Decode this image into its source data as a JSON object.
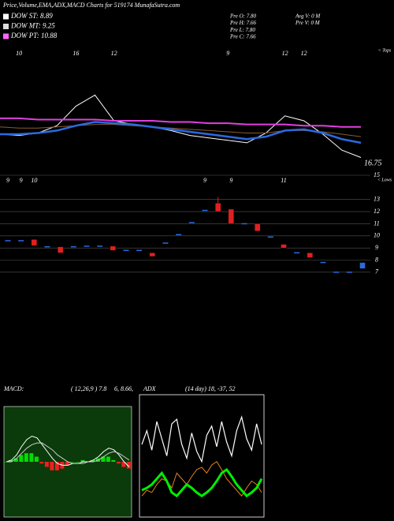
{
  "header": {
    "title": "Price,Volume,EMA,ADX,MACD Charts for 519174  MunafaSutra.com",
    "legend": [
      {
        "text": "DOW ST: 8.89",
        "color": "#ffffff"
      },
      {
        "text": "DOW MT: 9.25",
        "color": "#dddddd"
      },
      {
        "text": "DOW PT: 10.88",
        "color": "#ff66ff"
      }
    ],
    "quote": [
      "Pre  O: 7.80",
      "Pre  H: 7.66",
      "Pre  L: 7.80",
      "Pre  C: 7.66"
    ],
    "volume": [
      "Avg V: 0  M",
      "Pre  V: 0  M"
    ]
  },
  "chart_data": [
    {
      "type": "line",
      "annotations": [
        "< Tops",
        "16.75"
      ],
      "ylim": [
        16,
        26
      ],
      "categories": [
        null,
        "10",
        null,
        null,
        "16",
        null,
        "12",
        null,
        null,
        null,
        null,
        null,
        "9",
        null,
        null,
        "12",
        "12",
        null,
        null,
        null
      ],
      "series": [
        {
          "color": "#ffffff",
          "width": 1,
          "values": [
            18.9,
            18.8,
            19.0,
            19.6,
            21.2,
            22.1,
            20.0,
            19.7,
            19.5,
            19.2,
            18.8,
            18.6,
            18.4,
            18.2,
            19.0,
            20.4,
            20.0,
            18.9,
            17.6,
            17.0
          ]
        },
        {
          "color": "#8b5a2b",
          "width": 1,
          "values": [
            19.5,
            19.4,
            19.4,
            19.5,
            19.6,
            19.7,
            19.7,
            19.6,
            19.5,
            19.4,
            19.3,
            19.2,
            19.1,
            19.0,
            19.0,
            19.2,
            19.2,
            19.1,
            18.9,
            18.7
          ]
        },
        {
          "color": "#e040e0",
          "width": 2,
          "values": [
            20.2,
            20.2,
            20.1,
            20.1,
            20.1,
            20.1,
            20.0,
            20.0,
            20.0,
            19.9,
            19.9,
            19.8,
            19.8,
            19.7,
            19.7,
            19.7,
            19.6,
            19.6,
            19.5,
            19.5
          ]
        },
        {
          "color": "#2a6ae0",
          "width": 2.5,
          "values": [
            18.9,
            18.9,
            19.0,
            19.2,
            19.6,
            19.9,
            19.8,
            19.7,
            19.5,
            19.3,
            19.1,
            18.9,
            18.7,
            18.5,
            18.7,
            19.2,
            19.3,
            19.0,
            18.5,
            18.2
          ]
        }
      ]
    },
    {
      "type": "candlestick",
      "annotations": [
        "< Lows"
      ],
      "ylim": [
        6.6,
        15
      ],
      "yticks": [
        15,
        13,
        12,
        11,
        10,
        9,
        8,
        7
      ],
      "up_color": "#2a6ae0",
      "down_color": "#e02020",
      "categories": [
        "9",
        "9",
        "10",
        null,
        null,
        null,
        null,
        null,
        null,
        null,
        null,
        null,
        null,
        null,
        null,
        "9",
        null,
        "9",
        null,
        null,
        null,
        "11",
        null,
        null,
        null,
        null,
        null,
        null
      ],
      "open": [
        9.6,
        9.6,
        9.7,
        9.1,
        9.1,
        9.1,
        9.15,
        9.15,
        9.15,
        8.8,
        8.8,
        8.6,
        9.4,
        10.1,
        11.1,
        12.1,
        12.7,
        12.2,
        11.0,
        11.0,
        9.9,
        9.3,
        8.6,
        8.6,
        7.8,
        7.0,
        7.0,
        7.3
      ],
      "high": [
        9.6,
        9.6,
        9.7,
        9.1,
        9.1,
        9.1,
        9.15,
        9.15,
        9.15,
        8.8,
        8.8,
        8.6,
        9.4,
        10.1,
        11.1,
        12.1,
        13.2,
        12.2,
        11.0,
        11.0,
        9.9,
        9.3,
        8.6,
        8.6,
        7.8,
        7.0,
        7.0,
        7.8
      ],
      "low": [
        9.6,
        9.6,
        9.2,
        9.1,
        8.6,
        9.1,
        9.15,
        9.15,
        8.8,
        8.8,
        8.8,
        8.3,
        9.4,
        10.1,
        11.1,
        12.1,
        12.0,
        11.0,
        11.0,
        10.4,
        9.9,
        9.0,
        8.6,
        8.2,
        7.8,
        7.0,
        7.0,
        7.3
      ],
      "close": [
        9.6,
        9.6,
        9.2,
        9.1,
        8.6,
        9.1,
        9.15,
        9.15,
        8.8,
        8.8,
        8.8,
        8.3,
        9.4,
        10.1,
        11.1,
        12.1,
        12.0,
        11.0,
        11.0,
        10.4,
        9.9,
        9.0,
        8.6,
        8.2,
        7.8,
        7.0,
        7.0,
        7.8
      ]
    },
    {
      "type": "macd",
      "title": "MACD:",
      "params": "( 12,26,9 ) 7.8",
      "tail": "6, 8.66,",
      "ylim": [
        -3,
        3
      ],
      "positive_color": "#00dd00",
      "negative_color": "#ee2020",
      "series": [
        {
          "color": "#ffffff",
          "values": [
            0.0,
            0.1,
            0.4,
            0.9,
            1.3,
            1.5,
            1.4,
            1.0,
            0.6,
            0.2,
            -0.1,
            -0.2,
            -0.2,
            -0.1,
            -0.1,
            0.0,
            0.0,
            0.1,
            0.3,
            0.6,
            0.8,
            0.7,
            0.4,
            0.0,
            -0.3
          ]
        },
        {
          "color": "#cccccc",
          "values": [
            0.0,
            0.0,
            0.2,
            0.5,
            0.8,
            1.0,
            1.1,
            1.1,
            0.9,
            0.7,
            0.4,
            0.2,
            0.0,
            -0.1,
            -0.1,
            -0.1,
            0.0,
            0.0,
            0.1,
            0.3,
            0.5,
            0.6,
            0.5,
            0.3,
            0.1
          ]
        }
      ],
      "histogram": [
        0,
        0.1,
        0.2,
        0.4,
        0.5,
        0.5,
        0.3,
        -0.1,
        -0.3,
        -0.5,
        -0.5,
        -0.4,
        -0.2,
        0,
        0,
        0.1,
        0,
        0.1,
        0.2,
        0.3,
        0.3,
        0.1,
        -0.1,
        -0.3,
        -0.4
      ]
    },
    {
      "type": "adx",
      "title": "ADX",
      "params": "(14 day) 18, -37, 52",
      "ylim": [
        0,
        100
      ],
      "series": [
        {
          "color": "#ffffff",
          "width": 1.2,
          "values": [
            60,
            72,
            55,
            80,
            65,
            50,
            78,
            82,
            60,
            48,
            70,
            54,
            45,
            68,
            76,
            58,
            80,
            62,
            50,
            72,
            84,
            65,
            55,
            78,
            60
          ]
        },
        {
          "color": "#e08020",
          "width": 1,
          "values": [
            15,
            20,
            18,
            25,
            30,
            28,
            22,
            35,
            30,
            25,
            32,
            38,
            40,
            35,
            42,
            45,
            38,
            30,
            25,
            20,
            15,
            22,
            28,
            25,
            18
          ]
        },
        {
          "color": "#00ee00",
          "width": 3,
          "values": [
            20,
            22,
            25,
            30,
            35,
            28,
            18,
            15,
            20,
            25,
            22,
            18,
            15,
            18,
            22,
            28,
            35,
            38,
            32,
            25,
            20,
            15,
            18,
            22,
            30
          ]
        }
      ]
    }
  ]
}
